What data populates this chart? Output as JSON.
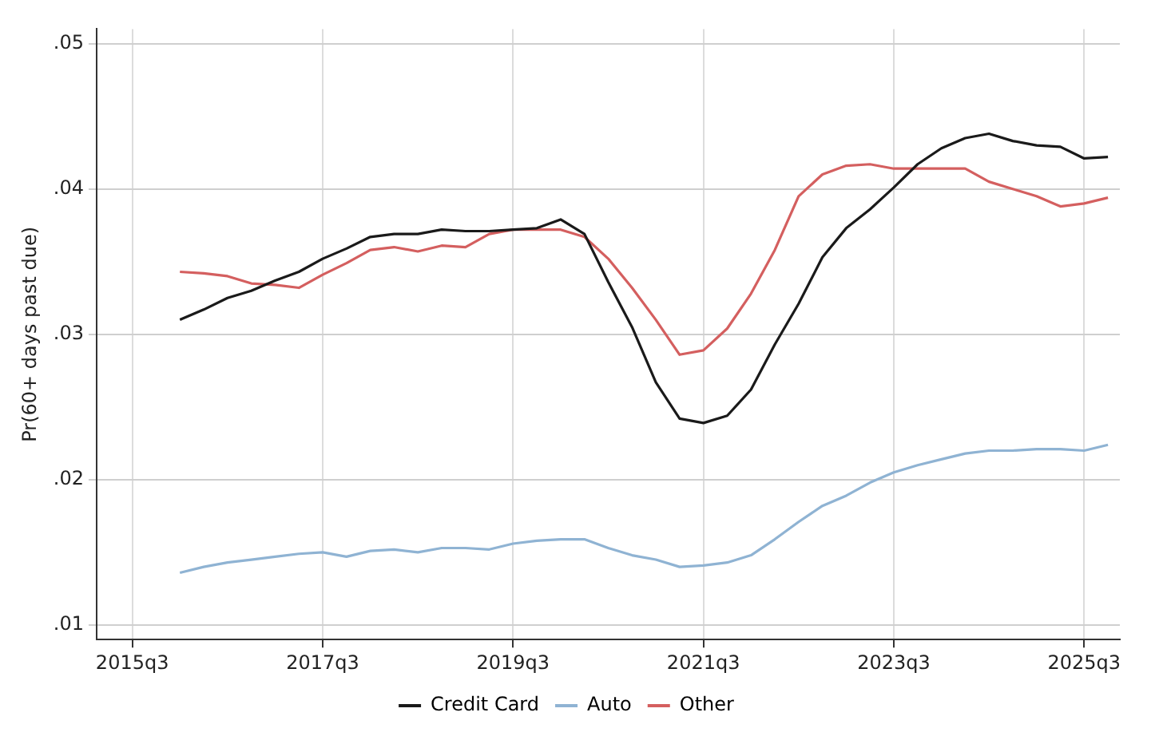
{
  "chart_data": {
    "type": "line",
    "ylabel": "Pr(60+ days past due)",
    "legend": "bottom",
    "grid": true,
    "marker": "none",
    "line_style": "solid",
    "categories": [
      null,
      "2015q3",
      null,
      null,
      null,
      null,
      null,
      null,
      null,
      "2017q3",
      null,
      null,
      null,
      null,
      null,
      null,
      null,
      "2019q3",
      null,
      null,
      null,
      null,
      null,
      null,
      null,
      "2021q3",
      null,
      null,
      null,
      null,
      null,
      null,
      null,
      "2023q3",
      null,
      null,
      null,
      null,
      null,
      null,
      null,
      "2025q3",
      null
    ],
    "ylim": [
      0.009,
      0.051
    ],
    "yticks": [
      {
        "value": 0.01,
        "label": ".01"
      },
      {
        "value": 0.02,
        "label": ".02"
      },
      {
        "value": 0.03,
        "label": ".03"
      },
      {
        "value": 0.04,
        "label": ".04"
      },
      {
        "value": 0.05,
        "label": ".05"
      }
    ],
    "series": [
      {
        "name": "Credit Card",
        "color": "#1a1a1a",
        "values": [
          null,
          null,
          null,
          0.031,
          0.0317,
          0.0325,
          0.033,
          0.0337,
          0.0343,
          0.0352,
          0.0359,
          0.0367,
          0.0369,
          0.0369,
          0.0372,
          0.0371,
          0.0371,
          0.0372,
          0.0373,
          0.0379,
          0.0369,
          0.0336,
          0.0305,
          0.0267,
          0.0242,
          0.0239,
          0.0244,
          0.0262,
          0.0293,
          0.0321,
          0.0353,
          0.0373,
          0.0386,
          0.0401,
          0.0417,
          0.0428,
          0.0435,
          0.0438,
          0.0433,
          0.043,
          0.0429,
          0.0421,
          0.0422
        ]
      },
      {
        "name": "Auto",
        "color": "#8fb3d3",
        "values": [
          null,
          null,
          null,
          0.0136,
          0.014,
          0.0143,
          0.0145,
          0.0147,
          0.0149,
          0.015,
          0.0147,
          0.0151,
          0.0152,
          0.015,
          0.0153,
          0.0153,
          0.0152,
          0.0156,
          0.0158,
          0.0159,
          0.0159,
          0.0153,
          0.0148,
          0.0145,
          0.014,
          0.0141,
          0.0143,
          0.0148,
          0.0159,
          0.0171,
          0.0182,
          0.0189,
          0.0198,
          0.0205,
          0.021,
          0.0214,
          0.0218,
          0.022,
          0.022,
          0.0221,
          0.0221,
          0.022,
          0.0224
        ]
      },
      {
        "name": "Other",
        "color": "#d45f5f",
        "values": [
          null,
          null,
          null,
          0.0343,
          0.0342,
          0.034,
          0.0335,
          0.0334,
          0.0332,
          0.0341,
          0.0349,
          0.0358,
          0.036,
          0.0357,
          0.0361,
          0.036,
          0.0369,
          0.0372,
          0.0372,
          0.0372,
          0.0367,
          0.0352,
          0.0332,
          0.031,
          0.0286,
          0.0289,
          0.0304,
          0.0328,
          0.0358,
          0.0395,
          0.041,
          0.0416,
          0.0417,
          0.0414,
          0.0414,
          0.0414,
          0.0414,
          0.0405,
          0.04,
          0.0395,
          0.0388,
          0.039,
          0.0394
        ]
      }
    ]
  }
}
